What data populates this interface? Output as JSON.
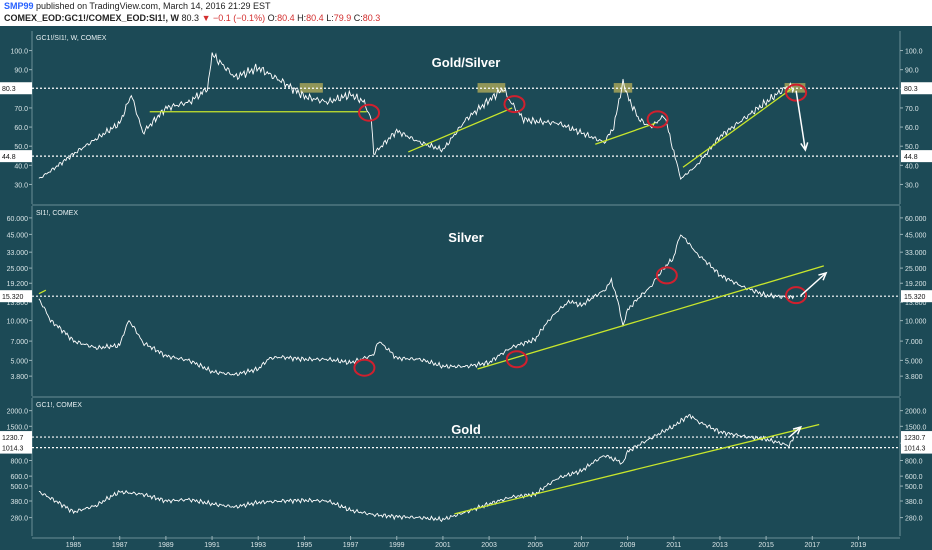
{
  "header": {
    "author": "SMP99",
    "published": "published on TradingView.com, March 14, 2016 21:29 EST",
    "symbol": "COMEX_EOD:GC1!/COMEX_EOD:SI1!, W",
    "last": "80.3",
    "change": "−0.1 (−0.1%)",
    "ohlc_o_label": "O:",
    "ohlc_o": "80.4",
    "ohlc_h_label": "H:",
    "ohlc_h": "80.4",
    "ohlc_l_label": "L:",
    "ohlc_l": "79.9",
    "ohlc_c_label": "C:",
    "ohlc_c": "80.3"
  },
  "colors": {
    "background": "#1c4a56",
    "line": "#ffffff",
    "trend": "#c8e62c",
    "circle": "#d0202e",
    "highlight": "#b8b05a"
  },
  "chart_data": [
    {
      "type": "line",
      "id": "ratio",
      "title": "Gold/Silver",
      "legend": "GC1!/SI1!, W, COMEX",
      "scale": "linear",
      "ylim": [
        25,
        105
      ],
      "ticks": [
        {
          "v": 100,
          "t": "100.0"
        },
        {
          "v": 90,
          "t": "90.0"
        },
        {
          "v": 80,
          "t": "80.0"
        },
        {
          "v": 70,
          "t": "70.0"
        },
        {
          "v": 60,
          "t": "60.0"
        },
        {
          "v": 50,
          "t": "50.0"
        },
        {
          "v": 40,
          "t": "40.0"
        },
        {
          "v": 30,
          "t": "30.0"
        }
      ],
      "series": [
        {
          "x": [
            1983.5,
            1984,
            1985,
            1986,
            1987,
            1987.5,
            1988,
            1989,
            1990,
            1990.8,
            1991,
            1991.5,
            1992,
            1993,
            1994,
            1995,
            1996,
            1997,
            1997.6,
            1997.9,
            1998,
            1998.5,
            1999,
            2000,
            2001,
            2002,
            2003,
            2003.6,
            2004,
            2004.5,
            2005,
            2006,
            2007,
            2008,
            2008.4,
            2008.8,
            2009,
            2009.5,
            2010,
            2010.6,
            2011,
            2011.3,
            2012,
            2013,
            2014,
            2015,
            2016,
            2016.2
          ],
          "y": [
            33,
            37,
            46,
            54,
            62,
            77,
            57,
            70,
            73,
            80,
            98,
            92,
            86,
            91,
            84,
            76,
            73,
            77,
            73,
            64,
            46,
            52,
            58,
            52,
            48,
            64,
            74,
            80,
            72,
            64,
            63,
            62,
            57,
            52,
            60,
            84,
            76,
            64,
            60,
            66,
            47,
            33,
            40,
            55,
            64,
            73,
            82,
            80
          ]
        }
      ],
      "levels": [
        {
          "v": 80.3,
          "label": "80.3"
        },
        {
          "v": 44.8,
          "label": "44.8"
        }
      ],
      "trendlines": [
        [
          1988.3,
          68,
          1997.7,
          68
        ],
        [
          1999.5,
          47,
          2004,
          70
        ],
        [
          2007.6,
          51,
          2010.2,
          62
        ],
        [
          2011.4,
          39,
          2016.1,
          80
        ]
      ],
      "circles": [
        [
          1997.8,
          67.5
        ],
        [
          2004.1,
          72
        ],
        [
          2010.3,
          64
        ],
        [
          2016.3,
          78
        ]
      ],
      "highlights": [
        [
          1994.8,
          1995.8,
          78,
          83
        ],
        [
          2002.5,
          2003.7,
          78,
          83
        ],
        [
          2008.4,
          2009.2,
          78,
          83
        ],
        [
          2015.8,
          2016.7,
          78,
          83
        ]
      ],
      "arrows": [
        [
          2016.3,
          79,
          2016.7,
          48
        ]
      ]
    },
    {
      "type": "line",
      "id": "silver",
      "title": "Silver",
      "legend": "SI1!, COMEX",
      "scale": "log",
      "ylim": [
        3.2,
        62
      ],
      "ticks": [
        {
          "v": 60,
          "t": "60.000"
        },
        {
          "v": 45,
          "t": "45.000"
        },
        {
          "v": 33,
          "t": "33.000"
        },
        {
          "v": 25,
          "t": "25.000"
        },
        {
          "v": 19.2,
          "t": "19.200"
        },
        {
          "v": 13.8,
          "t": "13.800"
        },
        {
          "v": 10,
          "t": "10.000"
        },
        {
          "v": 7,
          "t": "7.000"
        },
        {
          "v": 5,
          "t": "5.000"
        },
        {
          "v": 3.8,
          "t": "3.800"
        }
      ],
      "series": [
        {
          "x": [
            1983.5,
            1984,
            1985,
            1986,
            1987,
            1987.4,
            1988,
            1989,
            1990,
            1991,
            1992,
            1993,
            1993.5,
            1994,
            1995,
            1996,
            1997,
            1998,
            1998.2,
            1999,
            2000,
            2001,
            2002,
            2003,
            2004,
            2005,
            2006,
            2006.5,
            2007,
            2008,
            2008.3,
            2008.8,
            2009,
            2010,
            2011,
            2011.3,
            2012,
            2013,
            2014,
            2015,
            2016,
            2016.2
          ],
          "y": [
            14.5,
            10,
            7,
            6.2,
            6.5,
            10,
            6.8,
            5.4,
            5,
            4.1,
            3.9,
            4.3,
            5.2,
            5.3,
            5.1,
            5.1,
            4.8,
            5.5,
            7,
            5.2,
            5.1,
            4.5,
            4.5,
            4.8,
            6.3,
            7.2,
            12,
            14,
            13,
            17,
            20,
            9,
            12,
            18,
            30,
            45,
            32,
            22,
            18,
            15.5,
            15,
            15.4
          ]
        }
      ],
      "levels": [
        {
          "v": 15.32,
          "label": "15.320"
        }
      ],
      "trendlines": [
        [
          2002.5,
          4.3,
          2017.5,
          26
        ],
        [
          1983.5,
          16,
          1983.8,
          17
        ]
      ],
      "circles": [
        [
          1997.6,
          4.4
        ],
        [
          2004.2,
          5.1
        ],
        [
          2010.7,
          22
        ],
        [
          2016.3,
          15.6
        ]
      ],
      "highlights": [],
      "arrows": [
        [
          2016.5,
          15.5,
          2017.6,
          23
        ]
      ]
    },
    {
      "type": "line",
      "id": "gold",
      "title": "Gold",
      "legend": "GC1!, COMEX",
      "scale": "log",
      "ylim": [
        240,
        2100
      ],
      "ticks": [
        {
          "v": 2000,
          "t": "2000.0"
        },
        {
          "v": 1500,
          "t": "1500.0"
        },
        {
          "v": 1100,
          "t": "1100.0"
        },
        {
          "v": 800,
          "t": "800.0"
        },
        {
          "v": 600,
          "t": "600.0"
        },
        {
          "v": 500,
          "t": "500.0"
        },
        {
          "v": 380,
          "t": "380.0"
        },
        {
          "v": 280,
          "t": "280.0"
        }
      ],
      "series": [
        {
          "x": [
            1983.5,
            1984,
            1985,
            1986,
            1987,
            1988,
            1989,
            1990,
            1991,
            1992,
            1993,
            1994,
            1995,
            1996,
            1997,
            1998,
            1999,
            2000,
            2001,
            2002,
            2003,
            2004,
            2005,
            2006,
            2007,
            2008,
            2008.8,
            2009,
            2010,
            2011,
            2011.7,
            2012,
            2013,
            2014,
            2015,
            2016,
            2016.2
          ],
          "y": [
            450,
            400,
            310,
            350,
            450,
            430,
            380,
            390,
            360,
            340,
            370,
            380,
            385,
            380,
            320,
            295,
            285,
            280,
            270,
            310,
            360,
            410,
            430,
            580,
            660,
            880,
            760,
            940,
            1200,
            1500,
            1850,
            1650,
            1350,
            1250,
            1180,
            1050,
            1240
          ]
        }
      ],
      "levels": [
        {
          "v": 1230.7,
          "label": "1230.7"
        },
        {
          "v": 1014.3,
          "label": "1014.3"
        }
      ],
      "trendlines": [
        [
          2001.5,
          300,
          2017.3,
          1550
        ]
      ],
      "segments": [
        [
          2007.8,
          1014.3,
          2020,
          1014.3
        ]
      ],
      "circles": [],
      "highlights": [],
      "arrows": [
        [
          2016,
          1230,
          2016.5,
          1480
        ]
      ]
    }
  ],
  "x_axis": {
    "labels": [
      "1985",
      "1987",
      "1989",
      "1991",
      "1993",
      "1995",
      "1997",
      "1999",
      "2001",
      "2003",
      "2005",
      "2007",
      "2009",
      "2011",
      "2013",
      "2015",
      "2017",
      "2019"
    ],
    "values": [
      1985,
      1987,
      1989,
      1991,
      1993,
      1995,
      1997,
      1999,
      2001,
      2003,
      2005,
      2007,
      2009,
      2011,
      2013,
      2015,
      2017,
      2019
    ],
    "range": [
      1983.2,
      2020.8
    ]
  }
}
